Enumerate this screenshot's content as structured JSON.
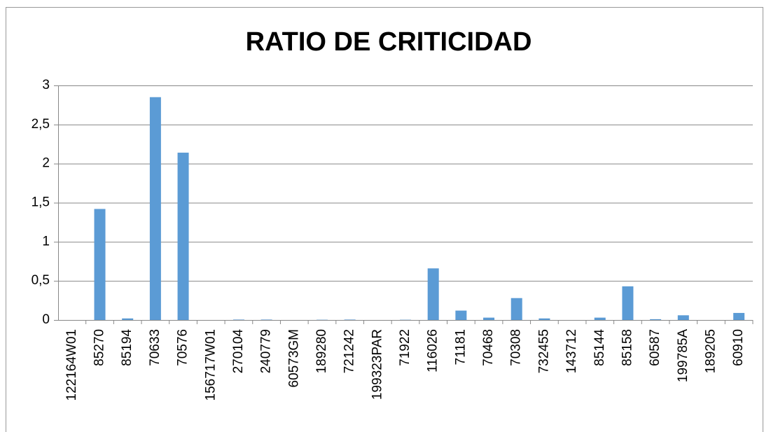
{
  "chart_data": {
    "type": "bar",
    "title": "RATIO DE CRITICIDAD",
    "categories": [
      "122164W01",
      "85270",
      "85194",
      "70633",
      "70576",
      "156717W01",
      "270104",
      "240779",
      "60573GM",
      "189280",
      "721242",
      "199323PAR",
      "71922",
      "116026",
      "71181",
      "70468",
      "70308",
      "732455",
      "143712",
      "85144",
      "85158",
      "60587",
      "199785A",
      "189205",
      "60910"
    ],
    "values": [
      0,
      1.42,
      0.02,
      2.85,
      2.14,
      0,
      0.005,
      0.005,
      0,
      0.003,
      0.005,
      0,
      0.003,
      0.66,
      0.12,
      0.03,
      0.28,
      0.02,
      0,
      0.03,
      0.43,
      0.01,
      0.06,
      0,
      0.09
    ],
    "color": "#5b9bd5",
    "ylim": [
      0,
      3
    ],
    "yticks": [
      0,
      {
        "value": 0.5,
        "label": "0,5"
      },
      1,
      {
        "value": 1.5,
        "label": "1,5"
      },
      2,
      {
        "value": 2.5,
        "label": "2,5"
      },
      3
    ],
    "grid": true
  }
}
